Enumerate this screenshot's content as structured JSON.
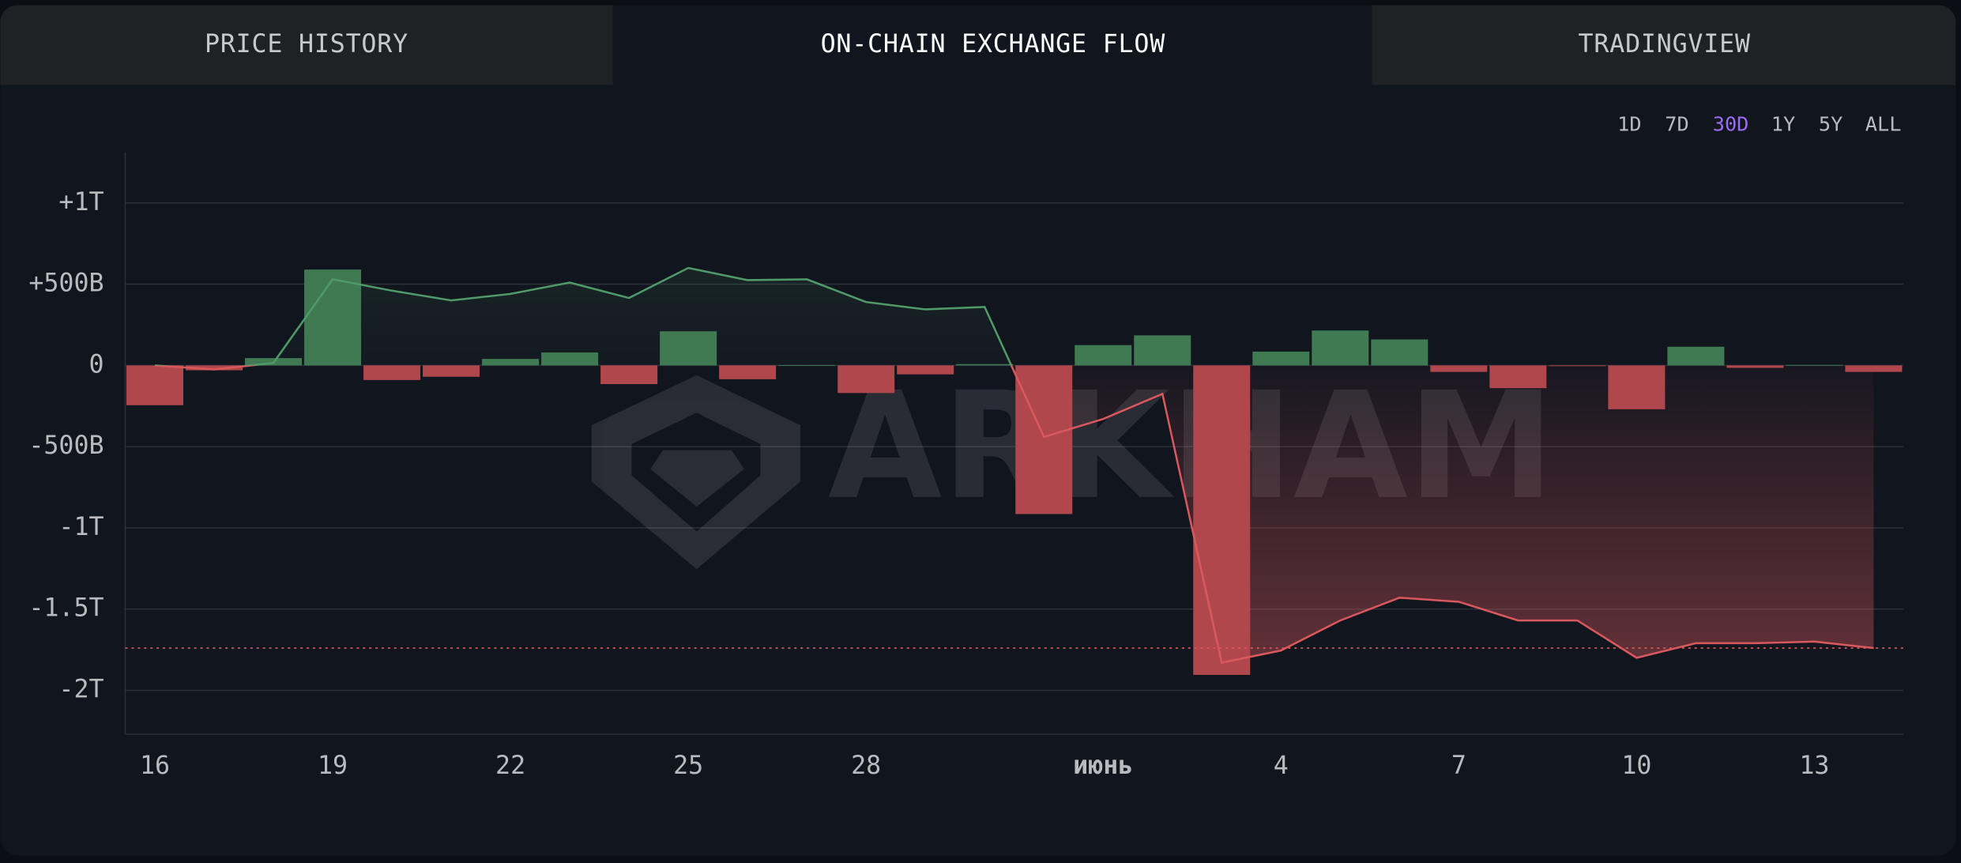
{
  "tabs": [
    "PRICE HISTORY",
    "ON-CHAIN EXCHANGE FLOW",
    "TRADINGVIEW"
  ],
  "ranges": [
    "1D",
    "7D",
    "30D",
    "1Y",
    "5Y",
    "ALL"
  ],
  "watermark": "ARKHAM",
  "chart_data": {
    "type": "bar",
    "categories": [
      "16",
      null,
      null,
      "19",
      null,
      null,
      "22",
      null,
      null,
      "25",
      null,
      null,
      "28",
      null,
      null,
      null,
      "июнь",
      null,
      null,
      "4",
      null,
      null,
      "7",
      null,
      null,
      "10",
      null,
      null,
      "13",
      null
    ],
    "values": [
      -245,
      -30,
      45,
      590,
      -90,
      -70,
      40,
      80,
      -115,
      210,
      -85,
      2,
      -170,
      -55,
      8,
      -915,
      125,
      185,
      -1905,
      85,
      215,
      160,
      -40,
      -140,
      -3,
      -270,
      115,
      -15,
      3,
      -40
    ],
    "positive_color": "#3f7a52",
    "negative_color": "#b0474c",
    "line": {
      "values": [
        0,
        -25,
        15,
        530,
        460,
        400,
        440,
        510,
        415,
        600,
        525,
        530,
        390,
        345,
        360,
        -440,
        -330,
        -175,
        -1830,
        -1755,
        -1570,
        -1430,
        -1455,
        -1570,
        -1570,
        -1800,
        -1710,
        -1710,
        -1700,
        -1740
      ],
      "positive_color": "#4f9a68",
      "negative_color": "#d9585e"
    },
    "ylim": [
      -2270,
      1310
    ],
    "yticks": [
      {
        "value": 1000,
        "label": "+1T"
      },
      {
        "value": 500,
        "label": "+500B"
      },
      0,
      {
        "value": -500,
        "label": "-500B"
      },
      {
        "value": -1000,
        "label": "-1T"
      },
      {
        "value": -1500,
        "label": "-1.5T"
      },
      {
        "value": -2000,
        "label": "-2T"
      }
    ],
    "grid": true
  }
}
